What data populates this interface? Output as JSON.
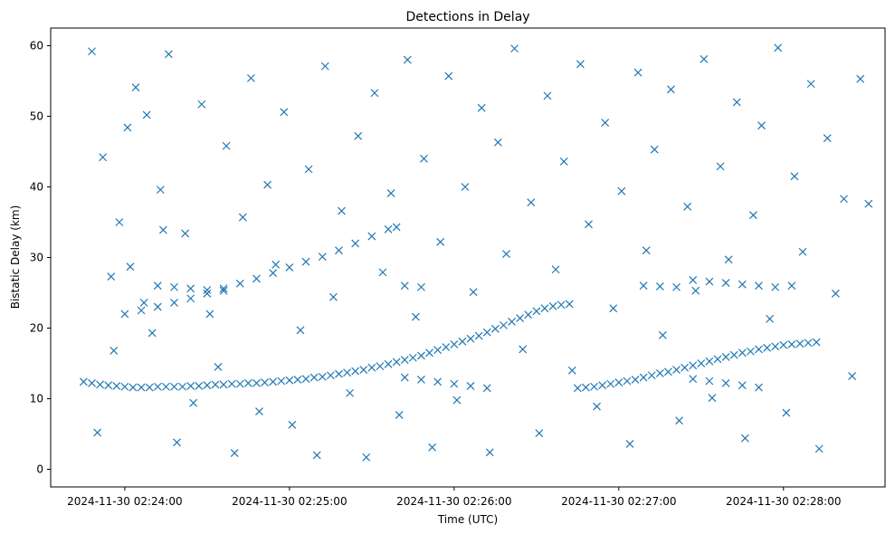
{
  "chart_data": {
    "type": "scatter",
    "title": "Detections in Delay",
    "xlabel": "Time (UTC)",
    "ylabel": "Bistatic Delay (km)",
    "x_ticks": [
      "2024-11-30 02:24:00",
      "2024-11-30 02:25:00",
      "2024-11-30 02:26:00",
      "2024-11-30 02:27:00",
      "2024-11-30 02:28:00"
    ],
    "y_ticks": [
      0,
      10,
      20,
      30,
      40,
      50,
      60
    ],
    "xlim": [
      "2024-11-30 02:23:33",
      "2024-11-30 02:28:37"
    ],
    "ylim": [
      -2.5,
      62.5
    ],
    "grid": false,
    "marker": "x",
    "color": "#1f77b4",
    "series": [
      {
        "points": [
          [
            "02:23:45",
            12.4
          ],
          [
            "02:23:48",
            12.2
          ],
          [
            "02:23:51",
            12.0
          ],
          [
            "02:23:54",
            11.9
          ],
          [
            "02:23:57",
            11.8
          ],
          [
            "02:24:00",
            11.7
          ],
          [
            "02:24:03",
            11.6
          ],
          [
            "02:24:06",
            11.6
          ],
          [
            "02:24:09",
            11.6
          ],
          [
            "02:24:12",
            11.7
          ],
          [
            "02:24:15",
            11.7
          ],
          [
            "02:24:18",
            11.7
          ],
          [
            "02:24:21",
            11.7
          ],
          [
            "02:24:24",
            11.8
          ],
          [
            "02:24:27",
            11.8
          ],
          [
            "02:24:30",
            11.9
          ],
          [
            "02:24:33",
            12.0
          ],
          [
            "02:24:36",
            12.0
          ],
          [
            "02:24:39",
            12.1
          ],
          [
            "02:24:42",
            12.1
          ],
          [
            "02:24:45",
            12.2
          ],
          [
            "02:24:48",
            12.2
          ],
          [
            "02:24:51",
            12.3
          ],
          [
            "02:24:54",
            12.4
          ],
          [
            "02:24:57",
            12.5
          ],
          [
            "02:25:00",
            12.6
          ],
          [
            "02:25:03",
            12.7
          ],
          [
            "02:25:06",
            12.8
          ],
          [
            "02:25:09",
            13.0
          ],
          [
            "02:25:12",
            13.1
          ],
          [
            "02:25:15",
            13.3
          ],
          [
            "02:25:18",
            13.5
          ],
          [
            "02:25:21",
            13.7
          ],
          [
            "02:25:24",
            13.9
          ],
          [
            "02:25:27",
            14.1
          ],
          [
            "02:25:30",
            14.4
          ],
          [
            "02:25:33",
            14.6
          ],
          [
            "02:25:36",
            14.9
          ],
          [
            "02:25:39",
            15.2
          ],
          [
            "02:25:42",
            15.5
          ],
          [
            "02:25:45",
            15.8
          ],
          [
            "02:25:48",
            16.1
          ],
          [
            "02:25:51",
            16.5
          ],
          [
            "02:25:54",
            16.9
          ],
          [
            "02:25:57",
            17.3
          ],
          [
            "02:26:00",
            17.7
          ],
          [
            "02:26:03",
            18.1
          ],
          [
            "02:26:06",
            18.5
          ],
          [
            "02:26:09",
            18.9
          ],
          [
            "02:26:12",
            19.4
          ],
          [
            "02:26:15",
            19.9
          ],
          [
            "02:26:18",
            20.4
          ],
          [
            "02:26:21",
            20.9
          ],
          [
            "02:26:24",
            21.4
          ],
          [
            "02:26:27",
            21.9
          ],
          [
            "02:26:30",
            22.4
          ],
          [
            "02:26:33",
            22.8
          ],
          [
            "02:26:36",
            23.1
          ],
          [
            "02:26:39",
            23.3
          ],
          [
            "02:26:42",
            23.4
          ],
          [
            "02:26:45",
            11.5
          ],
          [
            "02:26:48",
            11.6
          ],
          [
            "02:26:51",
            11.7
          ],
          [
            "02:26:54",
            11.9
          ],
          [
            "02:26:57",
            12.1
          ],
          [
            "02:27:00",
            12.3
          ],
          [
            "02:27:03",
            12.5
          ],
          [
            "02:27:06",
            12.7
          ],
          [
            "02:27:09",
            13.0
          ],
          [
            "02:27:12",
            13.3
          ],
          [
            "02:27:15",
            13.6
          ],
          [
            "02:27:18",
            13.8
          ],
          [
            "02:27:21",
            14.1
          ],
          [
            "02:27:24",
            14.4
          ],
          [
            "02:27:27",
            14.7
          ],
          [
            "02:27:30",
            15.0
          ],
          [
            "02:27:33",
            15.3
          ],
          [
            "02:27:36",
            15.6
          ],
          [
            "02:27:39",
            15.9
          ],
          [
            "02:27:42",
            16.2
          ],
          [
            "02:27:45",
            16.5
          ],
          [
            "02:27:48",
            16.7
          ],
          [
            "02:27:51",
            17.0
          ],
          [
            "02:27:54",
            17.2
          ],
          [
            "02:27:57",
            17.4
          ],
          [
            "02:28:00",
            17.6
          ],
          [
            "02:28:03",
            17.7
          ],
          [
            "02:28:06",
            17.8
          ],
          [
            "02:28:09",
            17.9
          ],
          [
            "02:28:12",
            18.0
          ],
          [
            "02:24:00",
            22.0
          ],
          [
            "02:24:06",
            22.5
          ],
          [
            "02:24:12",
            23.0
          ],
          [
            "02:24:18",
            23.6
          ],
          [
            "02:24:24",
            24.2
          ],
          [
            "02:24:30",
            24.9
          ],
          [
            "02:24:36",
            25.6
          ],
          [
            "02:24:42",
            26.3
          ],
          [
            "02:24:48",
            27.0
          ],
          [
            "02:24:54",
            27.8
          ],
          [
            "02:25:00",
            28.6
          ],
          [
            "02:25:06",
            29.4
          ],
          [
            "02:25:12",
            30.1
          ],
          [
            "02:25:18",
            31.0
          ],
          [
            "02:25:24",
            32.0
          ],
          [
            "02:25:30",
            33.0
          ],
          [
            "02:25:36",
            34.0
          ],
          [
            "02:25:39",
            34.3
          ],
          [
            "02:25:42",
            26.0
          ],
          [
            "02:25:48",
            25.8
          ],
          [
            "02:24:12",
            26.0
          ],
          [
            "02:24:18",
            25.8
          ],
          [
            "02:24:24",
            25.6
          ],
          [
            "02:24:30",
            25.4
          ],
          [
            "02:24:36",
            25.3
          ],
          [
            "02:25:42",
            13.0
          ],
          [
            "02:25:48",
            12.7
          ],
          [
            "02:25:54",
            12.4
          ],
          [
            "02:26:00",
            12.1
          ],
          [
            "02:26:06",
            11.8
          ],
          [
            "02:26:12",
            11.5
          ],
          [
            "02:27:09",
            26.0
          ],
          [
            "02:27:15",
            25.9
          ],
          [
            "02:27:21",
            25.8
          ],
          [
            "02:27:27",
            26.8
          ],
          [
            "02:27:33",
            26.6
          ],
          [
            "02:27:39",
            26.4
          ],
          [
            "02:27:45",
            26.2
          ],
          [
            "02:27:51",
            26.0
          ],
          [
            "02:27:57",
            25.8
          ],
          [
            "02:28:03",
            26.0
          ],
          [
            "02:27:27",
            12.8
          ],
          [
            "02:27:33",
            12.5
          ],
          [
            "02:27:39",
            12.2
          ],
          [
            "02:27:45",
            11.9
          ],
          [
            "02:27:51",
            11.6
          ],
          [
            "02:23:48",
            59.2
          ],
          [
            "02:23:52",
            44.2
          ],
          [
            "02:23:55",
            27.3
          ],
          [
            "02:23:58",
            35.0
          ],
          [
            "02:24:01",
            48.4
          ],
          [
            "02:24:04",
            54.1
          ],
          [
            "02:24:07",
            23.6
          ],
          [
            "02:24:10",
            19.3
          ],
          [
            "02:24:13",
            39.6
          ],
          [
            "02:24:16",
            58.8
          ],
          [
            "02:24:19",
            3.8
          ],
          [
            "02:24:22",
            33.4
          ],
          [
            "02:24:25",
            9.4
          ],
          [
            "02:24:28",
            51.7
          ],
          [
            "02:24:31",
            22.0
          ],
          [
            "02:24:34",
            14.5
          ],
          [
            "02:24:37",
            45.8
          ],
          [
            "02:24:40",
            2.3
          ],
          [
            "02:24:43",
            35.7
          ],
          [
            "02:24:46",
            55.4
          ],
          [
            "02:24:49",
            8.2
          ],
          [
            "02:24:52",
            40.3
          ],
          [
            "02:24:55",
            29.0
          ],
          [
            "02:24:58",
            50.6
          ],
          [
            "02:25:01",
            6.3
          ],
          [
            "02:25:04",
            19.7
          ],
          [
            "02:25:07",
            42.5
          ],
          [
            "02:25:10",
            2.0
          ],
          [
            "02:25:13",
            57.1
          ],
          [
            "02:25:16",
            24.4
          ],
          [
            "02:25:19",
            36.6
          ],
          [
            "02:25:22",
            10.8
          ],
          [
            "02:25:25",
            47.2
          ],
          [
            "02:25:28",
            1.7
          ],
          [
            "02:25:31",
            53.3
          ],
          [
            "02:25:34",
            27.9
          ],
          [
            "02:25:37",
            39.1
          ],
          [
            "02:25:40",
            7.7
          ],
          [
            "02:25:43",
            58.0
          ],
          [
            "02:25:46",
            21.6
          ],
          [
            "02:25:49",
            44.0
          ],
          [
            "02:25:52",
            3.1
          ],
          [
            "02:25:55",
            32.2
          ],
          [
            "02:25:58",
            55.7
          ],
          [
            "02:26:01",
            9.8
          ],
          [
            "02:26:04",
            40.0
          ],
          [
            "02:26:07",
            25.1
          ],
          [
            "02:26:10",
            51.2
          ],
          [
            "02:26:13",
            2.4
          ],
          [
            "02:26:16",
            46.3
          ],
          [
            "02:26:19",
            30.5
          ],
          [
            "02:26:22",
            59.6
          ],
          [
            "02:26:25",
            17.0
          ],
          [
            "02:26:28",
            37.8
          ],
          [
            "02:26:31",
            5.1
          ],
          [
            "02:26:34",
            52.9
          ],
          [
            "02:26:37",
            28.3
          ],
          [
            "02:26:40",
            43.6
          ],
          [
            "02:26:43",
            14.0
          ],
          [
            "02:26:46",
            57.4
          ],
          [
            "02:26:49",
            34.7
          ],
          [
            "02:26:52",
            8.9
          ],
          [
            "02:26:55",
            49.1
          ],
          [
            "02:26:58",
            22.8
          ],
          [
            "02:27:01",
            39.4
          ],
          [
            "02:27:04",
            3.6
          ],
          [
            "02:27:07",
            56.2
          ],
          [
            "02:27:10",
            31.0
          ],
          [
            "02:27:13",
            45.3
          ],
          [
            "02:27:16",
            19.0
          ],
          [
            "02:27:19",
            53.8
          ],
          [
            "02:27:22",
            6.9
          ],
          [
            "02:27:25",
            37.2
          ],
          [
            "02:27:28",
            25.3
          ],
          [
            "02:27:31",
            58.1
          ],
          [
            "02:27:34",
            10.1
          ],
          [
            "02:27:37",
            42.9
          ],
          [
            "02:27:40",
            29.7
          ],
          [
            "02:27:43",
            52.0
          ],
          [
            "02:27:46",
            4.4
          ],
          [
            "02:27:49",
            36.0
          ],
          [
            "02:27:52",
            48.7
          ],
          [
            "02:27:55",
            21.3
          ],
          [
            "02:27:58",
            59.7
          ],
          [
            "02:28:01",
            8.0
          ],
          [
            "02:28:04",
            41.5
          ],
          [
            "02:28:07",
            30.8
          ],
          [
            "02:28:10",
            54.6
          ],
          [
            "02:28:13",
            2.9
          ],
          [
            "02:28:16",
            46.9
          ],
          [
            "02:28:19",
            24.9
          ],
          [
            "02:28:22",
            38.3
          ],
          [
            "02:28:25",
            13.2
          ],
          [
            "02:28:28",
            55.3
          ],
          [
            "02:28:31",
            37.6
          ],
          [
            "02:23:50",
            5.2
          ],
          [
            "02:23:56",
            16.8
          ],
          [
            "02:24:02",
            28.7
          ],
          [
            "02:24:08",
            50.2
          ],
          [
            "02:24:14",
            33.9
          ]
        ]
      }
    ]
  }
}
